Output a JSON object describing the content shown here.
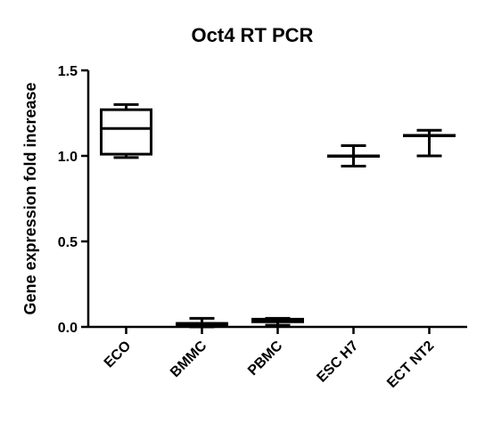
{
  "chart_data": {
    "type": "box",
    "title": "Oct4 RT PCR",
    "xlabel": "",
    "ylabel": "Gene expression fold increase",
    "ylim": [
      0,
      1.5
    ],
    "yticks": [
      "0.0",
      "0.5",
      "1.0",
      "1.5"
    ],
    "categories": [
      "ECO",
      "BMMC",
      "PBMC",
      "ESC H7",
      "ECT NT2"
    ],
    "boxes": [
      {
        "min": 0.99,
        "q1": 1.01,
        "median": 1.16,
        "q3": 1.27,
        "max": 1.3
      },
      {
        "min": 0.0,
        "q1": 0.01,
        "median": 0.02,
        "q3": 0.02,
        "max": 0.05
      },
      {
        "min": 0.01,
        "q1": 0.03,
        "median": 0.04,
        "q3": 0.045,
        "max": 0.05
      },
      {
        "min": 0.94,
        "q1": 1.0,
        "median": 1.0,
        "q3": 1.0,
        "max": 1.06
      },
      {
        "min": 1.0,
        "q1": 1.12,
        "median": 1.12,
        "q3": 1.12,
        "max": 1.15
      }
    ],
    "grid": false,
    "legend": "none"
  }
}
